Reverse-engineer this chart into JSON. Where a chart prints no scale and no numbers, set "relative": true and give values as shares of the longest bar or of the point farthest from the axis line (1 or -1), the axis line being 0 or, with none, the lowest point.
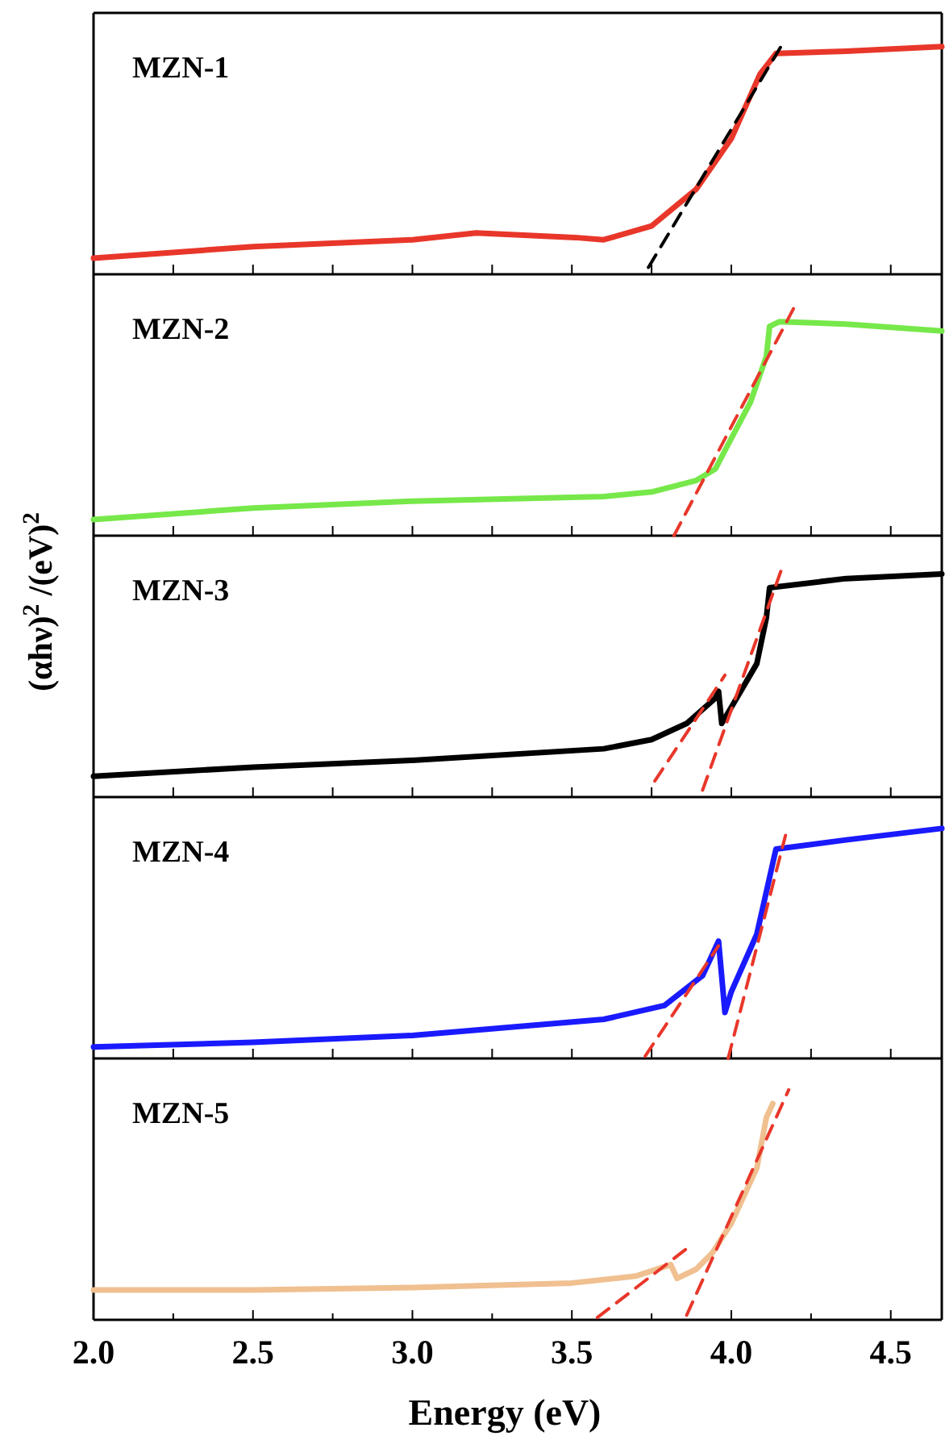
{
  "chart_data": [
    {
      "type": "line",
      "relative": true,
      "tick_labels": false,
      "xlim": [
        2,
        4.66
      ],
      "xticks": [
        {
          "value": 2,
          "label": null
        },
        {
          "value": 2.25,
          "label": null
        },
        {
          "value": 2.5,
          "label": null
        },
        {
          "value": 2.75,
          "label": null
        },
        {
          "value": 3,
          "label": null
        },
        {
          "value": 3.25,
          "label": null
        },
        {
          "value": 3.5,
          "label": null
        },
        {
          "value": 3.75,
          "label": null
        },
        {
          "value": 4,
          "label": null
        },
        {
          "value": 4.25,
          "label": null
        },
        {
          "value": 4.5,
          "label": null
        }
      ],
      "series": [
        {
          "name": "MZN-1",
          "color": "#e8372a",
          "line_style": "solid",
          "x": [
            2.0,
            2.5,
            3.0,
            3.2,
            3.51,
            3.6,
            3.75,
            3.89,
            4.0,
            4.09,
            4.14,
            4.36,
            4.66
          ],
          "values": [
            0.07,
            0.12,
            0.15,
            0.18,
            0.16,
            0.15,
            0.21,
            0.37,
            0.59,
            0.87,
            0.96,
            0.97,
            0.99
          ]
        },
        {
          "type": "line",
          "color": "#000000",
          "line_style": "dashed",
          "x": [
            3.74,
            4.16
          ],
          "values": [
            0.03,
            1
          ]
        }
      ]
    },
    {
      "type": "line",
      "relative": true,
      "tick_labels": false,
      "xlim": [
        2,
        4.66
      ],
      "xticks": [
        {
          "value": 2,
          "label": null
        },
        {
          "value": 2.25,
          "label": null
        },
        {
          "value": 2.5,
          "label": null
        },
        {
          "value": 2.75,
          "label": null
        },
        {
          "value": 3,
          "label": null
        },
        {
          "value": 3.25,
          "label": null
        },
        {
          "value": 3.5,
          "label": null
        },
        {
          "value": 3.75,
          "label": null
        },
        {
          "value": 4,
          "label": null
        },
        {
          "value": 4.25,
          "label": null
        },
        {
          "value": 4.5,
          "label": null
        }
      ],
      "series": [
        {
          "name": "MZN-2",
          "color": "#77e84a",
          "line_style": "solid",
          "x": [
            2.0,
            2.5,
            3.0,
            3.6,
            3.75,
            3.89,
            3.95,
            3.98,
            4.06,
            4.11,
            4.12,
            4.15,
            4.36,
            4.66
          ],
          "values": [
            0.07,
            0.12,
            0.15,
            0.17,
            0.19,
            0.24,
            0.29,
            0.37,
            0.58,
            0.78,
            0.91,
            0.93,
            0.92,
            0.89
          ]
        },
        {
          "type": "line",
          "color": "#e8372a",
          "line_style": "dashed",
          "x": [
            3.82,
            4.2
          ],
          "values": [
            0,
            1
          ]
        }
      ]
    },
    {
      "type": "line",
      "relative": true,
      "tick_labels": false,
      "ylabel": "(αhν)$^{2}$ /(eV)$^{2}$",
      "xlim": [
        2,
        4.66
      ],
      "xticks": [
        {
          "value": 2,
          "label": null
        },
        {
          "value": 2.25,
          "label": null
        },
        {
          "value": 2.5,
          "label": null
        },
        {
          "value": 2.75,
          "label": null
        },
        {
          "value": 3,
          "label": null
        },
        {
          "value": 3.25,
          "label": null
        },
        {
          "value": 3.5,
          "label": null
        },
        {
          "value": 3.75,
          "label": null
        },
        {
          "value": 4,
          "label": null
        },
        {
          "value": 4.25,
          "label": null
        },
        {
          "value": 4.5,
          "label": null
        }
      ],
      "series": [
        {
          "name": "MZN-3",
          "color": "#000000",
          "line_style": "solid",
          "x": [
            2.0,
            2.5,
            3.0,
            3.6,
            3.75,
            3.86,
            3.95,
            3.96,
            3.97,
            4.0,
            4.08,
            4.11,
            4.12,
            4.36,
            4.66
          ],
          "values": [
            0.09,
            0.13,
            0.16,
            0.21,
            0.25,
            0.32,
            0.43,
            0.46,
            0.32,
            0.39,
            0.58,
            0.78,
            0.91,
            0.95,
            0.97
          ]
        },
        {
          "type": "line",
          "color": "#e8372a",
          "line_style": "dashed",
          "x": [
            3.76,
            3.98
          ],
          "values": [
            0.07,
            0.53
          ]
        },
        {
          "type": "line",
          "color": "#e8372a",
          "line_style": "dashed",
          "x": [
            3.91,
            4.16
          ],
          "values": [
            0.03,
            1
          ]
        }
      ]
    },
    {
      "type": "line",
      "relative": true,
      "tick_labels": false,
      "xlim": [
        2,
        4.66
      ],
      "xticks": [
        {
          "value": 2,
          "label": null
        },
        {
          "value": 2.25,
          "label": null
        },
        {
          "value": 2.5,
          "label": null
        },
        {
          "value": 2.75,
          "label": null
        },
        {
          "value": 3,
          "label": null
        },
        {
          "value": 3.25,
          "label": null
        },
        {
          "value": 3.5,
          "label": null
        },
        {
          "value": 3.75,
          "label": null
        },
        {
          "value": 4,
          "label": null
        },
        {
          "value": 4.25,
          "label": null
        },
        {
          "value": 4.5,
          "label": null
        }
      ],
      "series": [
        {
          "name": "MZN-4",
          "color": "#1a1aff",
          "line_style": "solid",
          "x": [
            2.0,
            2.5,
            3.0,
            3.6,
            3.79,
            3.91,
            3.96,
            3.98,
            4.0,
            4.08,
            4.14,
            4.36,
            4.66
          ],
          "values": [
            0.05,
            0.07,
            0.1,
            0.17,
            0.23,
            0.36,
            0.51,
            0.2,
            0.29,
            0.54,
            0.91,
            0.95,
            1
          ]
        },
        {
          "type": "line",
          "color": "#e8372a",
          "line_style": "dashed",
          "x": [
            3.73,
            3.96
          ],
          "values": [
            0.01,
            0.49
          ]
        },
        {
          "type": "line",
          "color": "#e8372a",
          "line_style": "dashed",
          "x": [
            3.99,
            4.17
          ],
          "values": [
            0,
            0.97
          ]
        }
      ]
    },
    {
      "type": "line",
      "relative": true,
      "xlabel": "Energy (eV)",
      "xlim": [
        2,
        4.66
      ],
      "xticks": [
        {
          "value": 2,
          "label": "2.0"
        },
        {
          "value": 2.25,
          "label": null
        },
        {
          "value": 2.5,
          "label": "2.5"
        },
        {
          "value": 2.75,
          "label": null
        },
        {
          "value": 3,
          "label": "3.0"
        },
        {
          "value": 3.25,
          "label": null
        },
        {
          "value": 3.5,
          "label": "3.5"
        },
        {
          "value": 3.75,
          "label": null
        },
        {
          "value": 4,
          "label": "4.0"
        },
        {
          "value": 4.25,
          "label": null
        },
        {
          "value": 4.5,
          "label": "4.5"
        }
      ],
      "series": [
        {
          "name": "MZN-5",
          "color": "#f0c090",
          "line_style": "solid",
          "x": [
            2.0,
            2.5,
            3.0,
            3.5,
            3.7,
            3.81,
            3.83,
            3.89,
            3.94,
            4.0,
            4.08,
            4.11,
            4.13
          ],
          "values": [
            0.13,
            0.13,
            0.14,
            0.16,
            0.19,
            0.24,
            0.18,
            0.22,
            0.29,
            0.42,
            0.66,
            0.88,
            0.94
          ]
        },
        {
          "type": "line",
          "color": "#e8372a",
          "line_style": "dashed",
          "x": [
            3.58,
            3.87
          ],
          "values": [
            0.01,
            0.32
          ]
        },
        {
          "type": "line",
          "color": "#e8372a",
          "line_style": "dashed",
          "x": [
            3.86,
            4.18
          ],
          "values": [
            0.02,
            1
          ]
        }
      ]
    }
  ]
}
